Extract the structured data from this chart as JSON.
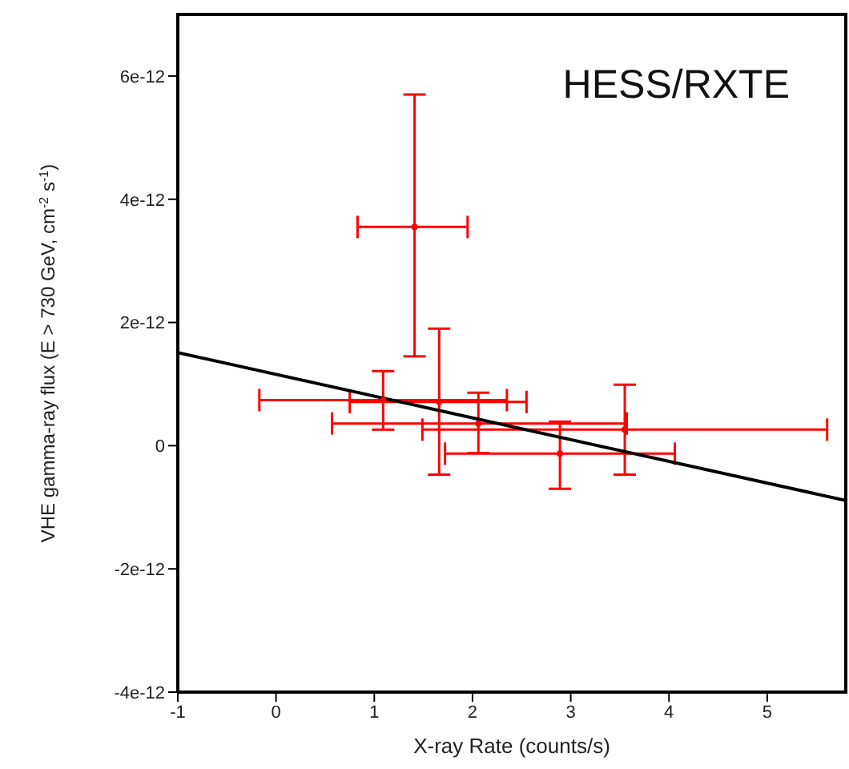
{
  "chart_data": {
    "type": "scatter",
    "xlabel": "X-ray Rate (counts/s)",
    "ylabel": "VHE gamma-ray flux (E > 730 GeV, cm$^{-2}$ s$^{-1}$)",
    "annotations": [
      "HESS/RXTE"
    ],
    "x": [
      1.41,
      1.09,
      1.66,
      2.06,
      2.89,
      3.55
    ],
    "series": [
      {
        "color": "#ff0000",
        "values": [
          3.55e-12,
          7.4e-13,
          7.1e-13,
          3.6e-13,
          -1.3e-13,
          2.6e-13
        ],
        "errors": [
          [
            1.45e-12,
            5.7e-12
          ],
          [
            2.6e-13,
            1.21e-12
          ],
          [
            -4.7e-13,
            1.9e-12
          ],
          [
            -1.2e-13,
            8.6e-13
          ],
          [
            -7e-13,
            3.9e-13
          ],
          [
            -4.7e-13,
            9.9e-13
          ]
        ],
        "xerrors": [
          [
            0.83,
            1.95
          ],
          [
            -0.17,
            2.35
          ],
          [
            0.75,
            2.55
          ],
          [
            0.57,
            3.57
          ],
          [
            1.72,
            4.06
          ],
          [
            1.49,
            5.61
          ]
        ]
      },
      {
        "type": "line",
        "color": "#000000",
        "x": [
          -1,
          5.8
        ],
        "values": [
          1.51e-12,
          -8.9e-13
        ]
      }
    ],
    "xlim": [
      -1,
      5.8
    ],
    "xticks": [
      -1,
      0,
      1,
      2,
      3,
      4,
      5
    ],
    "ylim": [
      -4e-12,
      7e-12
    ],
    "yticks": [
      -4e-12,
      -2e-12,
      0,
      2e-12,
      4e-12,
      6e-12
    ],
    "grid": false,
    "legend": false
  }
}
